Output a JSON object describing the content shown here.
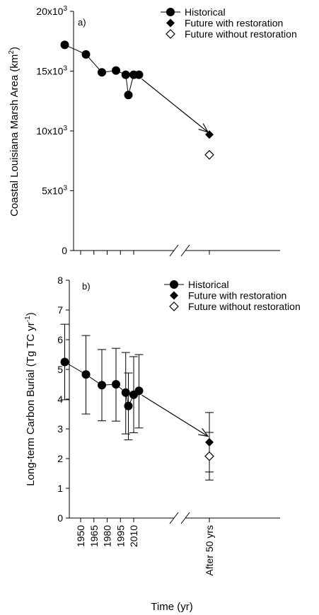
{
  "chart_data": [
    {
      "type": "line",
      "panel_label": "a)",
      "ylabel": "Coastal Louisiana Marsh Area (km²)",
      "ylabel_main": "Coastal Louisiana Marsh Area (km",
      "ylabel_sup": "2",
      "ylabel_tail": ")",
      "ylim": [
        0,
        20000
      ],
      "yticks": [
        {
          "value": 0,
          "base": "0",
          "exp": ""
        },
        {
          "value": 5000,
          "base": "5x10",
          "exp": "3"
        },
        {
          "value": 10000,
          "base": "10x10",
          "exp": "3"
        },
        {
          "value": 15000,
          "base": "15x10",
          "exp": "3"
        },
        {
          "value": 20000,
          "base": "20x10",
          "exp": "3"
        }
      ],
      "legend_position": "top-right",
      "series": [
        {
          "name": "Historical",
          "marker": "filled-circle",
          "x": [
            1932,
            1956,
            1974,
            1990,
            2001,
            2004,
            2010,
            2016
          ],
          "y": [
            17200,
            16400,
            14900,
            15050,
            14700,
            13000,
            14700,
            14700
          ]
        },
        {
          "name": "Future with restoration",
          "marker": "filled-diamond",
          "x": [
            "After 50 yrs"
          ],
          "y": [
            9700
          ]
        },
        {
          "name": "Future without restoration",
          "marker": "open-diamond",
          "x": [
            "After 50 yrs"
          ],
          "y": [
            8000
          ]
        }
      ],
      "arrow": {
        "from_y": 14700,
        "to_y": 9900
      }
    },
    {
      "type": "line",
      "panel_label": "b)",
      "ylabel": "Long-term Carbon Burial (Tg TC yr⁻¹)",
      "ylabel_main": "Long-term Carbon Burial (Tg TC yr",
      "ylabel_sup": "-1",
      "ylabel_tail": ")",
      "ylim": [
        0,
        8
      ],
      "yticks": [
        "0",
        "1",
        "2",
        "3",
        "4",
        "5",
        "6",
        "7",
        "8"
      ],
      "xlabel": "Time (yr)",
      "xticks": [
        "1950",
        "1965",
        "1980",
        "1995",
        "2010",
        "After 50 yrs"
      ],
      "legend_position": "top-right",
      "series": [
        {
          "name": "Historical",
          "marker": "filled-circle",
          "x": [
            1932,
            1956,
            1974,
            1990,
            2001,
            2004,
            2010,
            2016
          ],
          "y": [
            5.25,
            4.83,
            4.47,
            4.5,
            4.22,
            3.77,
            4.15,
            4.28
          ],
          "err_low": [
            3.98,
            3.5,
            3.27,
            3.26,
            2.83,
            2.63,
            2.87,
            3.03
          ],
          "err_high": [
            6.52,
            6.14,
            5.67,
            5.71,
            5.57,
            4.88,
            5.43,
            5.5
          ]
        },
        {
          "name": "Future with restoration",
          "marker": "filled-diamond",
          "x": [
            "After 50 yrs"
          ],
          "y": [
            2.55
          ],
          "err_low": [
            1.55
          ],
          "err_high": [
            3.55
          ]
        },
        {
          "name": "Future without restoration",
          "marker": "open-diamond",
          "x": [
            "After 50 yrs"
          ],
          "y": [
            2.08
          ],
          "err_low": [
            1.28
          ],
          "err_high": [
            2.88
          ]
        }
      ],
      "arrow": {
        "from_y": 4.28,
        "to_y": 2.75
      }
    }
  ]
}
